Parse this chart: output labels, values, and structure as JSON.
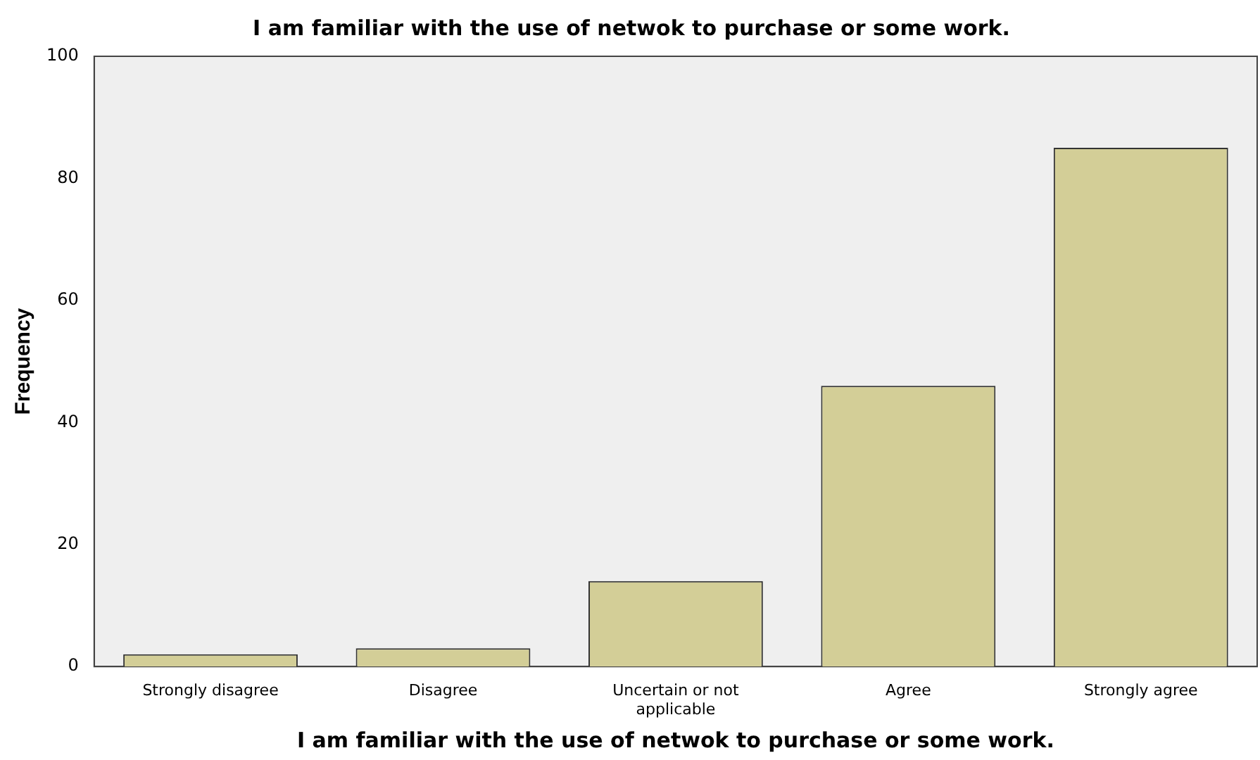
{
  "chart_data": {
    "type": "bar",
    "title": "I am familiar with the use of netwok to purchase or some work.",
    "xlabel": "I am familiar with the use of netwok to purchase or some work.",
    "ylabel": "Frequency",
    "categories": [
      "Strongly disagree",
      "Disagree",
      "Uncertain or not applicable",
      "Agree",
      "Strongly agree"
    ],
    "values": [
      2,
      3,
      14,
      46,
      85
    ],
    "color": "#d3ce97",
    "ylim": [
      0,
      100
    ],
    "yticks": [
      0,
      20,
      40,
      60,
      80,
      100
    ],
    "grid": false,
    "legend": false
  }
}
